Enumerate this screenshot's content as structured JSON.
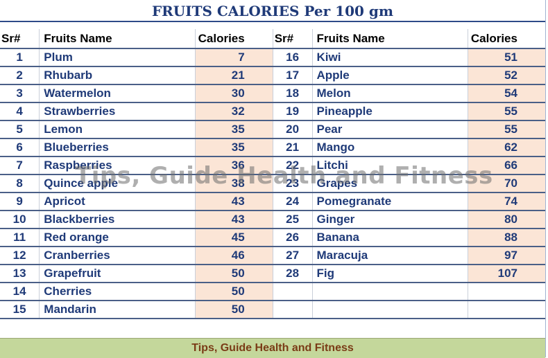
{
  "title": "FRUITS CALORIES Per 100 gm",
  "headers": {
    "sr": "Sr#",
    "name": "Fruits Name",
    "cal": "Calories"
  },
  "rows_left": [
    {
      "sr": "1",
      "name": "Plum",
      "cal": "7"
    },
    {
      "sr": "2",
      "name": "Rhubarb",
      "cal": "21"
    },
    {
      "sr": "3",
      "name": "Watermelon",
      "cal": "30"
    },
    {
      "sr": "4",
      "name": "Strawberries",
      "cal": "32"
    },
    {
      "sr": "5",
      "name": "Lemon",
      "cal": "35"
    },
    {
      "sr": "6",
      "name": "Blueberries",
      "cal": "35"
    },
    {
      "sr": "7",
      "name": "Raspberries",
      "cal": "36"
    },
    {
      "sr": "8",
      "name": "Quince apple",
      "cal": "38"
    },
    {
      "sr": "9",
      "name": "Apricot",
      "cal": "43"
    },
    {
      "sr": "10",
      "name": "Blackberries",
      "cal": "43"
    },
    {
      "sr": "11",
      "name": "Red orange",
      "cal": "45"
    },
    {
      "sr": "12",
      "name": "Cranberries",
      "cal": "46"
    },
    {
      "sr": "13",
      "name": "Grapefruit",
      "cal": "50"
    },
    {
      "sr": "14",
      "name": "Cherries",
      "cal": "50"
    },
    {
      "sr": "15",
      "name": "Mandarin",
      "cal": "50"
    }
  ],
  "rows_right": [
    {
      "sr": "16",
      "name": "Kiwi",
      "cal": "51"
    },
    {
      "sr": "17",
      "name": "Apple",
      "cal": "52"
    },
    {
      "sr": "18",
      "name": "Melon",
      "cal": "54"
    },
    {
      "sr": "19",
      "name": "Pineapple",
      "cal": "55"
    },
    {
      "sr": "20",
      "name": "Pear",
      "cal": "55"
    },
    {
      "sr": "21",
      "name": "Mango",
      "cal": "62"
    },
    {
      "sr": "22",
      "name": "Litchi",
      "cal": "66"
    },
    {
      "sr": "23",
      "name": "Grapes",
      "cal": "70"
    },
    {
      "sr": "24",
      "name": "Pomegranate",
      "cal": "74"
    },
    {
      "sr": "25",
      "name": "Ginger",
      "cal": "80"
    },
    {
      "sr": "26",
      "name": "Banana",
      "cal": "88"
    },
    {
      "sr": "27",
      "name": "Maracuja",
      "cal": "97"
    },
    {
      "sr": "28",
      "name": "Fig",
      "cal": "107"
    },
    {
      "sr": "",
      "name": "",
      "cal": ""
    },
    {
      "sr": "",
      "name": "",
      "cal": ""
    }
  ],
  "watermark": "Tips, Guide Health and Fitness",
  "footer": "Tips, Guide Health and Fitness"
}
